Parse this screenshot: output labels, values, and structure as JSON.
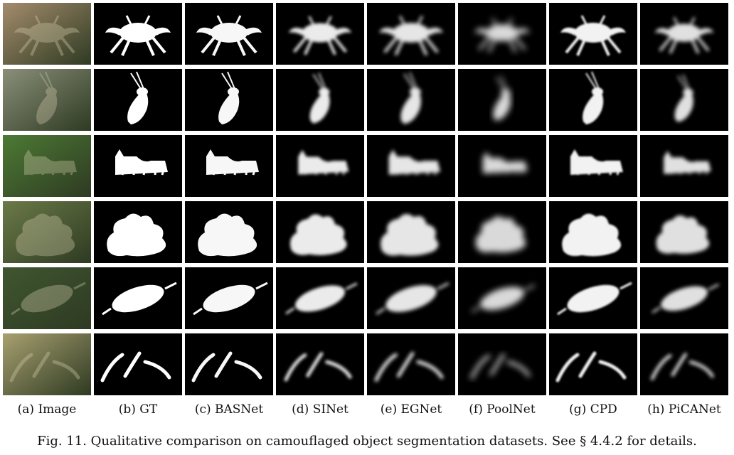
{
  "figure": {
    "columns": [
      {
        "key": "image",
        "label": "(a) Image"
      },
      {
        "key": "gt",
        "label": "(b) GT"
      },
      {
        "key": "basnet",
        "label": "(c) BASNet"
      },
      {
        "key": "sinet",
        "label": "(d) SINet"
      },
      {
        "key": "egnet",
        "label": "(e) EGNet"
      },
      {
        "key": "poolnet",
        "label": "(f) PoolNet"
      },
      {
        "key": "cpd",
        "label": "(g) CPD"
      },
      {
        "key": "picanet",
        "label": "(h) PiCANet"
      }
    ],
    "rows": [
      {
        "subject": "crab",
        "scene_color": "#a48c6c"
      },
      {
        "subject": "grasshopper",
        "scene_color": "#8a8f78"
      },
      {
        "subject": "cat",
        "scene_color": "#4c7a34"
      },
      {
        "subject": "sea-creature",
        "scene_color": "#6b7a48"
      },
      {
        "subject": "caterpillar",
        "scene_color": "#3f5630"
      },
      {
        "subject": "pipefish",
        "scene_color": "#a8a070"
      }
    ],
    "caption": "Fig. 11. Qualitative comparison on camouflaged object segmentation datasets. See § 4.4.2 for details."
  },
  "colors": {
    "mask": "#ffffff",
    "background": "#000000",
    "page": "#ffffff"
  }
}
